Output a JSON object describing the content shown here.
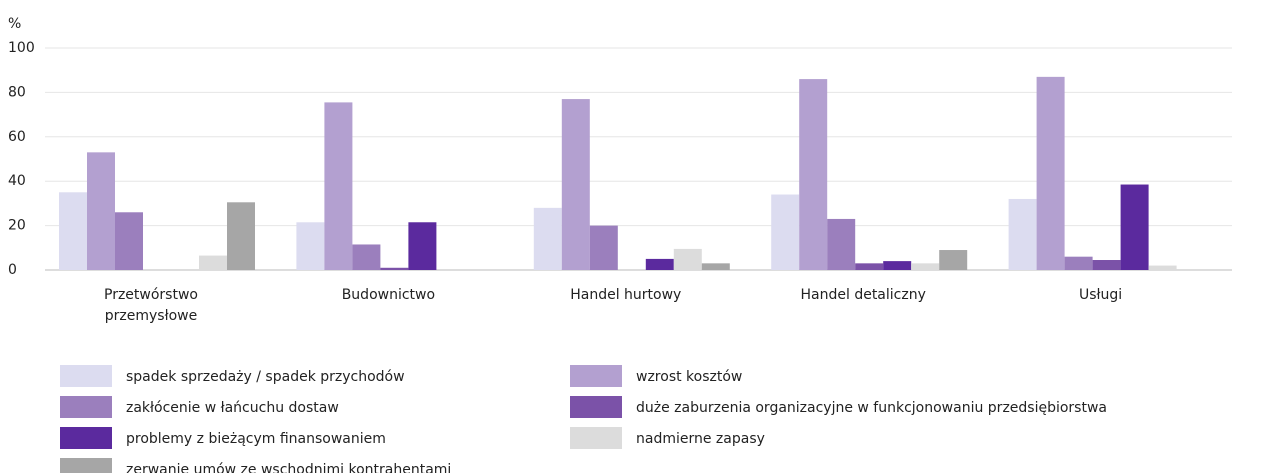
{
  "chart_data": {
    "type": "bar",
    "y_label": "%",
    "categories": [
      "Przetwórstwo przemysłowe",
      "Budownictwo",
      "Handel hurtowy",
      "Handel detaliczny",
      "Usługi"
    ],
    "series": [
      {
        "name": "spadek sprzedaży / spadek przychodów",
        "color": "#dcdcf0",
        "values": [
          35,
          21.5,
          28,
          34,
          32
        ]
      },
      {
        "name": "wzrost kosztów",
        "color": "#b3a0d0",
        "values": [
          53,
          75.5,
          77,
          86,
          87
        ]
      },
      {
        "name": "zakłócenie w łańcuchu dostaw",
        "color": "#9b7fbd",
        "values": [
          26,
          11.5,
          20,
          23,
          6
        ]
      },
      {
        "name": "duże zaburzenia organizacyjne w funkcjonowaniu przedsiębiorstwa",
        "color": "#7b52a8",
        "values": [
          0,
          1,
          0,
          3,
          4.5
        ]
      },
      {
        "name": "problemy z bieżącym finansowaniem",
        "color": "#5b2a9e",
        "values": [
          0,
          21.5,
          5,
          4,
          38.5
        ]
      },
      {
        "name": "nadmierne zapasy",
        "color": "#dcdcdc",
        "values": [
          6.5,
          0,
          9.5,
          3,
          2
        ]
      },
      {
        "name": "zerwanie umów ze wschodnimi kontrahentami",
        "color": "#a6a6a6",
        "values": [
          30.5,
          0,
          3,
          9,
          0
        ]
      }
    ],
    "ylim": [
      0,
      100
    ],
    "yticks": [
      0,
      20,
      40,
      60,
      80,
      100
    ],
    "grid": true
  }
}
